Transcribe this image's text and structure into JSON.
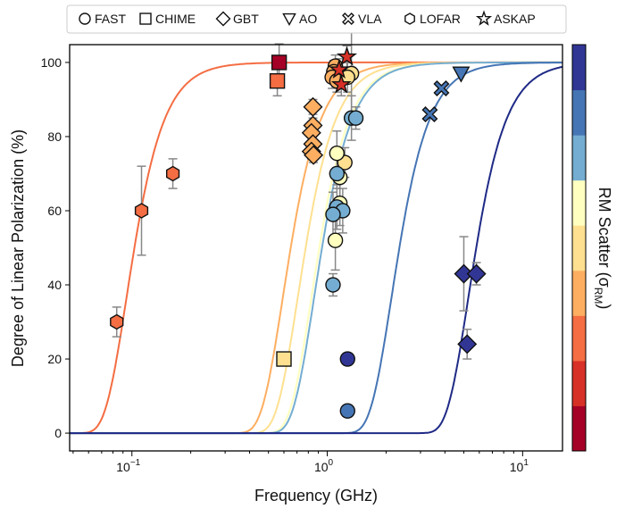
{
  "chart_data": {
    "type": "scatter",
    "title": "",
    "xlabel": "Frequency (GHz)",
    "ylabel": "Degree of Linear Polarization (%)",
    "xscale": "log",
    "xlim": [
      0.048,
      16
    ],
    "ylim": [
      -4.8,
      104.8
    ],
    "xticks": [
      {
        "value": 0.1,
        "base": "10",
        "exp": "−1"
      },
      {
        "value": 1,
        "base": "10",
        "exp": "0"
      },
      {
        "value": 10,
        "base": "10",
        "exp": "1"
      }
    ],
    "yticks": [
      0,
      20,
      40,
      60,
      80,
      100
    ],
    "grid": false,
    "legend": {
      "placement": "top-outside",
      "entries": [
        {
          "label": "FAST",
          "marker": "circle"
        },
        {
          "label": "CHIME",
          "marker": "square"
        },
        {
          "label": "GBT",
          "marker": "diamond"
        },
        {
          "label": "AO",
          "marker": "triangle-down"
        },
        {
          "label": "VLA",
          "marker": "x-cross"
        },
        {
          "label": "LOFAR",
          "marker": "hexagon"
        },
        {
          "label": "ASKAP",
          "marker": "star"
        }
      ]
    },
    "colorbar": {
      "label": "RM Scatter (σ",
      "label_sub": "RM",
      "label_end": ")",
      "colors_bottom_to_top": [
        "#a50026",
        "#d73027",
        "#f46d43",
        "#fdae61",
        "#fee090",
        "#ffffbf",
        "#74add1",
        "#4575b4",
        "#313695"
      ]
    },
    "curves": [
      {
        "color": "#f46d43",
        "f50_ghz": 0.103
      },
      {
        "color": "#fdae61",
        "f50_ghz": 0.65
      },
      {
        "color": "#fee090",
        "f50_ghz": 0.775
      },
      {
        "color": "#ffffbf",
        "f50_ghz": 0.91
      },
      {
        "color": "#74add1",
        "f50_ghz": 0.94
      },
      {
        "color": "#4575b4",
        "f50_ghz": 2.34
      },
      {
        "color": "#1f2a86",
        "f50_ghz": 5.79
      }
    ],
    "series": [
      {
        "name": "FAST",
        "marker": "circle",
        "points": [
          {
            "x": 1.1,
            "y": 99,
            "err": 3,
            "color": "#fdae61"
          },
          {
            "x": 1.08,
            "y": 97.5,
            "err": 3,
            "color": "#fdae61"
          },
          {
            "x": 1.06,
            "y": 96,
            "err": 3,
            "color": "#fdae61"
          },
          {
            "x": 1.12,
            "y": 95,
            "err": 3,
            "color": "#fdae61"
          },
          {
            "x": 1.33,
            "y": 97,
            "err": 12,
            "color": "#fee090"
          },
          {
            "x": 1.27,
            "y": 96,
            "err": 4,
            "color": "#fee090"
          },
          {
            "x": 1.23,
            "y": 73,
            "err": 4,
            "color": "#fee090"
          },
          {
            "x": 1.33,
            "y": 85,
            "err": 6,
            "color": "#74add1"
          },
          {
            "x": 1.4,
            "y": 85,
            "err": 3,
            "color": "#74add1"
          },
          {
            "x": 1.12,
            "y": 75.5,
            "err": 6,
            "color": "#ffffbf"
          },
          {
            "x": 1.16,
            "y": 69,
            "err": 6,
            "color": "#ffffbf"
          },
          {
            "x": 1.12,
            "y": 70,
            "err": 4,
            "color": "#74add1"
          },
          {
            "x": 1.16,
            "y": 62,
            "err": 6,
            "color": "#ffffbf"
          },
          {
            "x": 1.12,
            "y": 61,
            "err": 6,
            "color": "#74add1"
          },
          {
            "x": 1.2,
            "y": 60,
            "err": 6,
            "color": "#74add1"
          },
          {
            "x": 1.07,
            "y": 59,
            "err": 6,
            "color": "#74add1"
          },
          {
            "x": 1.1,
            "y": 52,
            "err": 8,
            "color": "#ffffbf"
          },
          {
            "x": 1.07,
            "y": 40,
            "err": 3,
            "color": "#74add1"
          },
          {
            "x": 1.27,
            "y": 20,
            "err": 0,
            "color": "#313695"
          },
          {
            "x": 1.27,
            "y": 6,
            "err": 0,
            "color": "#4575b4"
          }
        ]
      },
      {
        "name": "CHIME",
        "marker": "square",
        "points": [
          {
            "x": 0.567,
            "y": 100,
            "err": 5,
            "color": "#a50026"
          },
          {
            "x": 0.555,
            "y": 95,
            "err": 4,
            "color": "#f46d43"
          },
          {
            "x": 0.6,
            "y": 20,
            "err": 0,
            "color": "#fee090"
          }
        ]
      },
      {
        "name": "GBT",
        "marker": "diamond",
        "points": [
          {
            "x": 0.845,
            "y": 88,
            "err": 2,
            "color": "#fdae61"
          },
          {
            "x": 0.845,
            "y": 83,
            "err": 2,
            "color": "#fdae61"
          },
          {
            "x": 0.83,
            "y": 81,
            "err": 2,
            "color": "#fdae61"
          },
          {
            "x": 0.845,
            "y": 78,
            "err": 2,
            "color": "#fdae61"
          },
          {
            "x": 0.83,
            "y": 76,
            "err": 2,
            "color": "#fdae61"
          },
          {
            "x": 0.85,
            "y": 75,
            "err": 2,
            "color": "#fdae61"
          },
          {
            "x": 5.0,
            "y": 43,
            "err": 10,
            "color": "#313695"
          },
          {
            "x": 5.8,
            "y": 43,
            "err": 3,
            "color": "#313695"
          },
          {
            "x": 5.2,
            "y": 24,
            "err": 4,
            "color": "#313695"
          }
        ]
      },
      {
        "name": "AO",
        "marker": "triangle-down",
        "points": [
          {
            "x": 4.84,
            "y": 97,
            "err": 0,
            "color": "#4575b4"
          }
        ]
      },
      {
        "name": "VLA",
        "marker": "x-cross",
        "points": [
          {
            "x": 3.35,
            "y": 86,
            "err": 0,
            "color": "#4575b4"
          },
          {
            "x": 3.84,
            "y": 93,
            "err": 0,
            "color": "#4575b4"
          }
        ]
      },
      {
        "name": "LOFAR",
        "marker": "hexagon",
        "points": [
          {
            "x": 0.0836,
            "y": 30,
            "err": 4,
            "color": "#f46d43"
          },
          {
            "x": 0.112,
            "y": 60,
            "err": 12,
            "color": "#f46d43"
          },
          {
            "x": 0.162,
            "y": 70,
            "err": 4,
            "color": "#f46d43"
          }
        ]
      },
      {
        "name": "ASKAP",
        "marker": "star",
        "points": [
          {
            "x": 1.15,
            "y": 98,
            "err": 3,
            "color": "#d73027"
          },
          {
            "x": 1.18,
            "y": 94,
            "err": 3,
            "color": "#d73027"
          },
          {
            "x": 1.26,
            "y": 101.5,
            "err": 3,
            "color": "#d73027"
          }
        ]
      }
    ]
  }
}
